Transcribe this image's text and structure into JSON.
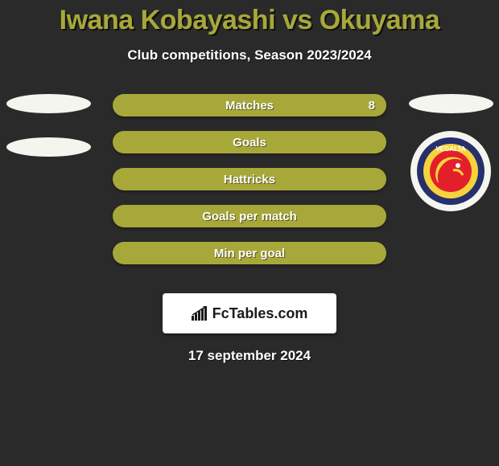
{
  "title": "Iwana Kobayashi vs Okuyama",
  "title_color": "#a8a83a",
  "subtitle": "Club competitions, Season 2023/2024",
  "date": "17 september 2024",
  "background_color": "#2a2a2a",
  "bar_color": "#a8a83a",
  "bar_text_color": "#ffffff",
  "oval_color": "#f5f5f0",
  "left_ovals_count": 2,
  "right_ovals_count": 1,
  "right_badge": {
    "present": true,
    "name": "Vegalta Sendai",
    "outer_bg": "#26306b",
    "ring_colors": [
      "#f6d33c",
      "#e3202a"
    ],
    "text": "VEGALTA"
  },
  "bars": [
    {
      "label": "Matches",
      "value_right": "8"
    },
    {
      "label": "Goals",
      "value_right": ""
    },
    {
      "label": "Hattricks",
      "value_right": ""
    },
    {
      "label": "Goals per match",
      "value_right": ""
    },
    {
      "label": "Min per goal",
      "value_right": ""
    }
  ],
  "logo": {
    "text": "FcTables.com",
    "box_bg": "#ffffff",
    "text_color": "#1a1a1a"
  },
  "typography": {
    "title_fontsize": 34,
    "subtitle_fontsize": 17,
    "bar_label_fontsize": 15,
    "date_fontsize": 17
  }
}
